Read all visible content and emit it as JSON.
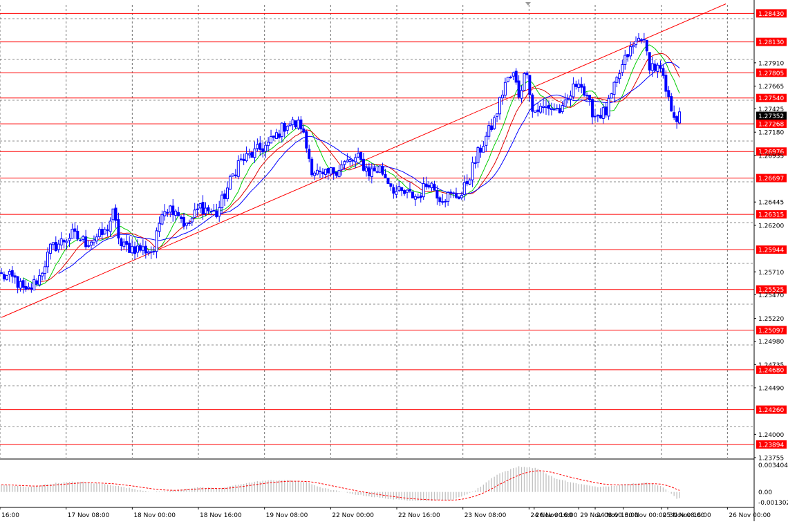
{
  "chart_data": {
    "type": "candlestick",
    "instrument_quote": "price",
    "y_ticks": [
      "1.28430",
      "1.28130",
      "1.27910",
      "1.27805",
      "1.27665",
      "1.27540",
      "1.27425",
      "1.27352",
      "1.27268",
      "1.27180",
      "1.26976",
      "1.26935",
      "1.26697",
      "1.26445",
      "1.26315",
      "1.26200",
      "1.25944",
      "1.25710",
      "1.25525",
      "1.25470",
      "1.25220",
      "1.25097",
      "1.24980",
      "1.24735",
      "1.24680",
      "1.24490",
      "1.24260",
      "1.24000",
      "1.23894",
      "1.23755"
    ],
    "current_price": "1.27352",
    "price_range": [
      1.23755,
      1.2852
    ],
    "levels": [
      {
        "label": "1.28430",
        "value": 1.2843
      },
      {
        "label": "1.28130",
        "value": 1.2813
      },
      {
        "label": "1.27805",
        "value": 1.27805
      },
      {
        "label": "1.27540",
        "value": 1.2754
      },
      {
        "label": "1.27268",
        "value": 1.27268
      },
      {
        "label": "1.26976",
        "value": 1.26976
      },
      {
        "label": "1.26697",
        "value": 1.26697
      },
      {
        "label": "1.26315",
        "value": 1.26315
      },
      {
        "label": "1.25944",
        "value": 1.25944
      },
      {
        "label": "1.25525",
        "value": 1.25525
      },
      {
        "label": "1.25097",
        "value": 1.25097
      },
      {
        "label": "1.24680",
        "value": 1.2468
      },
      {
        "label": "1.24260",
        "value": 1.2426
      },
      {
        "label": "1.23894",
        "value": 1.23894
      }
    ],
    "trendline": {
      "from": {
        "bar": 0,
        "price": 1.2523
      },
      "to": {
        "bar": 266,
        "price": 1.2853
      }
    },
    "x_ticks": [
      "16:00",
      "17 Nov 08:00",
      "18 Nov 00:00",
      "18 Nov 16:00",
      "19 Nov 08:00",
      "22 Nov 00:00",
      "22 Nov 16:00",
      "23 Nov 08:00",
      "24 Nov 00:00",
      "24 Nov 16:00",
      "25 Nov 08:00",
      "26 Nov 00:00",
      "26 Nov 16:00",
      "29 Nov 08:00",
      "30 Nov 00:00",
      "30 Nov 16:00"
    ],
    "close_anchors": [
      [
        0,
        1.2567
      ],
      [
        5,
        1.2563
      ],
      [
        9,
        1.2548
      ],
      [
        14,
        1.2566
      ],
      [
        18,
        1.2595
      ],
      [
        26,
        1.261
      ],
      [
        31,
        1.2602
      ],
      [
        38,
        1.2612
      ],
      [
        41,
        1.2632
      ],
      [
        44,
        1.2598
      ],
      [
        56,
        1.2593
      ],
      [
        59,
        1.2638
      ],
      [
        64,
        1.2638
      ],
      [
        68,
        1.2618
      ],
      [
        73,
        1.264
      ],
      [
        79,
        1.2632
      ],
      [
        87,
        1.2686
      ],
      [
        98,
        1.2705
      ],
      [
        105,
        1.2728
      ],
      [
        110,
        1.2725
      ],
      [
        114,
        1.268
      ],
      [
        118,
        1.267
      ],
      [
        126,
        1.2685
      ],
      [
        131,
        1.269
      ],
      [
        135,
        1.2676
      ],
      [
        139,
        1.268
      ],
      [
        145,
        1.2655
      ],
      [
        153,
        1.265
      ],
      [
        157,
        1.2667
      ],
      [
        161,
        1.265
      ],
      [
        169,
        1.2652
      ],
      [
        175,
        1.2695
      ],
      [
        181,
        1.273
      ],
      [
        185,
        1.277
      ],
      [
        188,
        1.2778
      ],
      [
        190,
        1.2758
      ],
      [
        193,
        1.2785
      ],
      [
        195,
        1.274
      ],
      [
        201,
        1.2745
      ],
      [
        206,
        1.274
      ],
      [
        212,
        1.2775
      ],
      [
        215,
        1.275
      ],
      [
        218,
        1.2736
      ],
      [
        222,
        1.2739
      ],
      [
        227,
        1.278
      ],
      [
        230,
        1.28
      ],
      [
        235,
        1.282
      ],
      [
        238,
        1.279
      ],
      [
        242,
        1.2782
      ],
      [
        245,
        1.275
      ],
      [
        248,
        1.2733
      ]
    ],
    "ma_series": [
      {
        "color": "#00cc00",
        "period": 8
      },
      {
        "color": "#dd0000",
        "period": 14
      },
      {
        "color": "#0000ff",
        "period": 21
      }
    ],
    "macd_labels": [
      "0.003404",
      "0.00",
      "-0.001302"
    ],
    "macd_range": [
      -0.0015,
      0.0036
    ],
    "macd_anchors": [
      [
        0,
        0.0009
      ],
      [
        10,
        0.0006
      ],
      [
        20,
        0.0011
      ],
      [
        28,
        0.0013
      ],
      [
        40,
        0.0009
      ],
      [
        50,
        0.0003
      ],
      [
        56,
        0.0
      ],
      [
        64,
        0.0002
      ],
      [
        72,
        0.0006
      ],
      [
        80,
        0.0004
      ],
      [
        88,
        0.001
      ],
      [
        96,
        0.0014
      ],
      [
        104,
        0.0015
      ],
      [
        112,
        0.0012
      ],
      [
        118,
        0.0005
      ],
      [
        128,
        -0.0002
      ],
      [
        136,
        -0.0006
      ],
      [
        146,
        -0.001
      ],
      [
        156,
        -0.0011
      ],
      [
        166,
        -0.001
      ],
      [
        174,
        0.0002
      ],
      [
        182,
        0.0022
      ],
      [
        190,
        0.0032
      ],
      [
        196,
        0.003
      ],
      [
        204,
        0.0016
      ],
      [
        212,
        0.001
      ],
      [
        220,
        0.0006
      ],
      [
        228,
        0.0009
      ],
      [
        236,
        0.0012
      ],
      [
        242,
        0.0008
      ],
      [
        248,
        -0.0008
      ]
    ],
    "colors": {
      "candle": "#0000ff",
      "level_line": "#ff0000",
      "level_label_bg": "#ff0000",
      "current_price_bg": "#000000",
      "macd_hist": "#c0c0c0",
      "macd_signal": "#ff0000",
      "grid": "#c0c0c0",
      "axis": "#000000"
    }
  }
}
